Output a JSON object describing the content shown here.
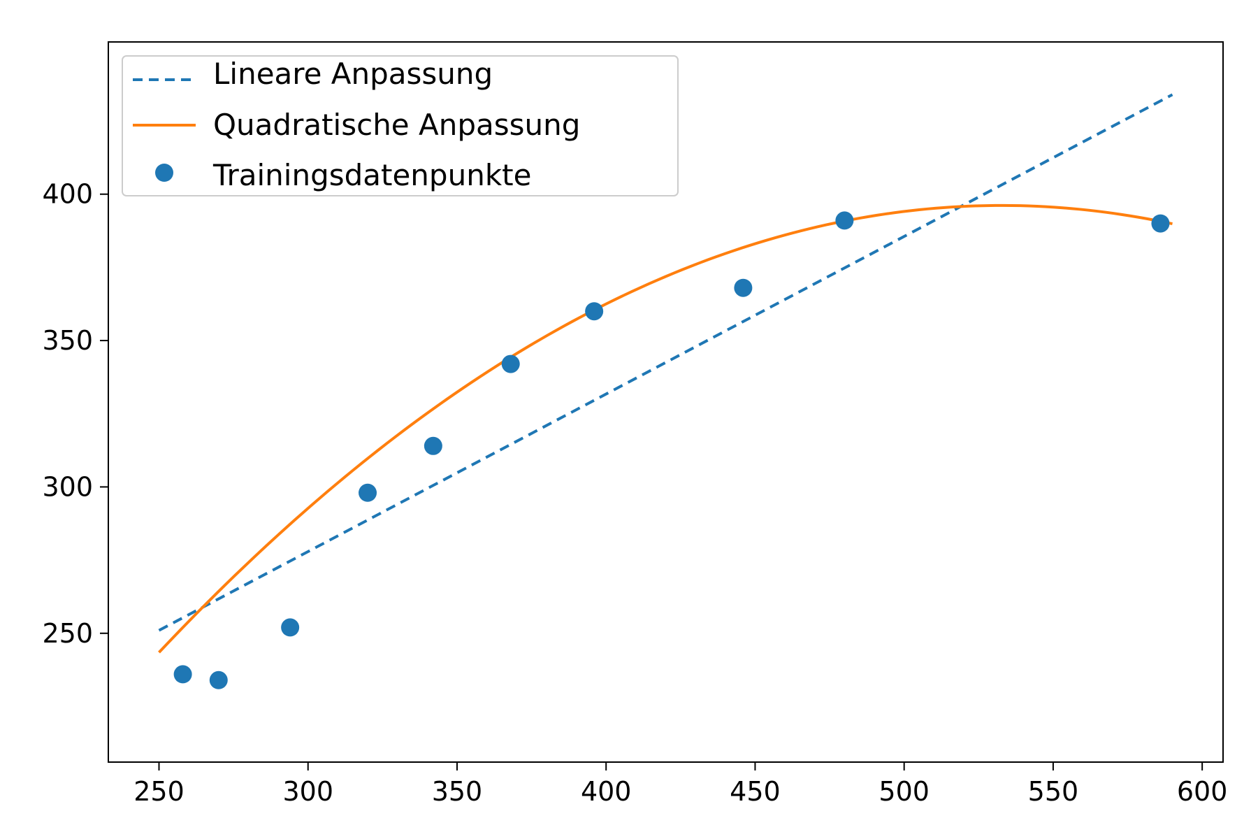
{
  "chart_data": {
    "type": "scatter",
    "title": "",
    "xlabel": "",
    "ylabel": "",
    "xlim": [
      233,
      607
    ],
    "ylim": [
      206,
      452
    ],
    "x_ticks": [
      250,
      300,
      350,
      400,
      450,
      500,
      550,
      600
    ],
    "y_ticks": [
      250,
      300,
      350,
      400
    ],
    "grid": false,
    "legend_position": "top-left",
    "series": [
      {
        "name": "Lineare Anpassung",
        "kind": "line",
        "style": "dashed",
        "color": "#1f77b4",
        "x": [
          250,
          590
        ],
        "y": [
          251,
          434
        ]
      },
      {
        "name": "Quadratische Anpassung",
        "kind": "curve",
        "style": "solid",
        "color": "#ff7f0e",
        "equation": "y = -0.00191*x^2 + 2.035*x - 145.9",
        "coefficients": [
          -0.00191,
          2.035,
          -145.9
        ],
        "x_range": [
          250,
          590
        ]
      },
      {
        "name": "Trainingsdatenpunkte",
        "kind": "points",
        "color": "#1f77b4",
        "x": [
          258,
          270,
          294,
          320,
          342,
          368,
          396,
          446,
          480,
          586
        ],
        "y": [
          236,
          234,
          252,
          298,
          314,
          342,
          360,
          368,
          391,
          390
        ]
      }
    ]
  }
}
